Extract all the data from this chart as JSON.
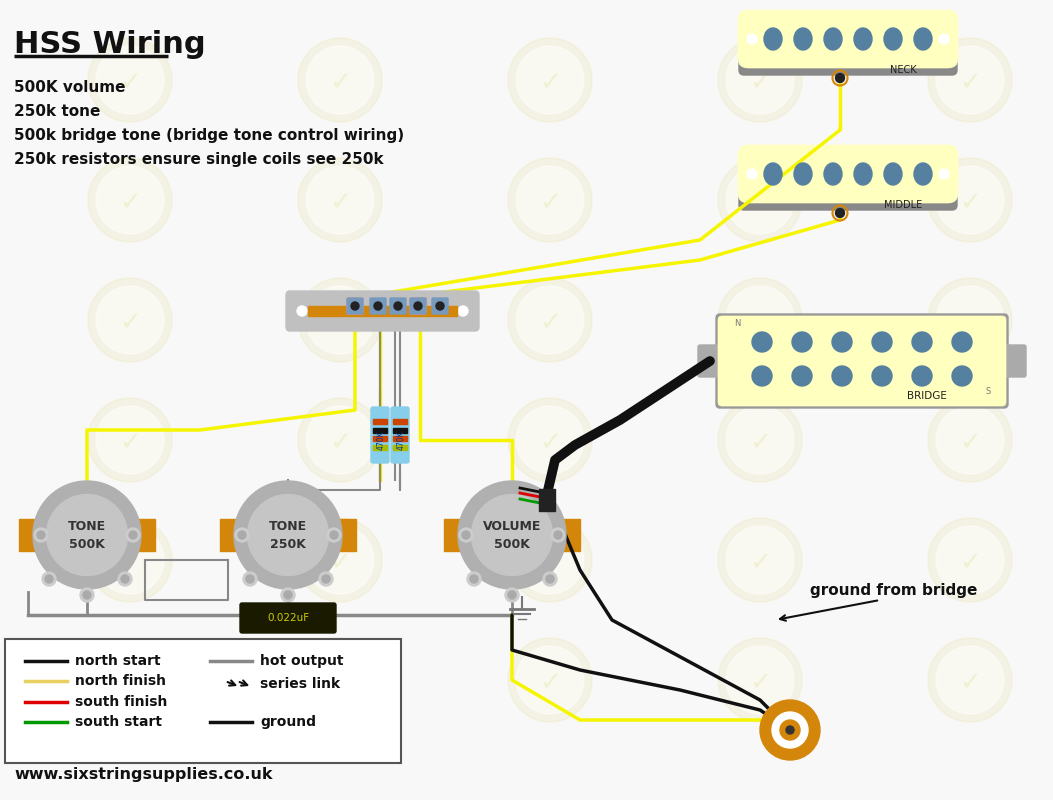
{
  "title": "HSS Wiring",
  "bg_color": "#f8f8f8",
  "info_lines": [
    "500K volume",
    "250k tone",
    "500k bridge tone (bridge tone control wiring)",
    "250k resistors ensure single coils see 250k"
  ],
  "website": "www.sixstringsupplies.co.uk",
  "cream": "#ffffc0",
  "pickup_gray": "#999999",
  "pot_gray": "#b0b0b0",
  "pot_inner": "#c8c8c8",
  "orange": "#d4860a",
  "yellow_wire": "#f5f500",
  "black_wire": "#111111",
  "gray_wire": "#888888",
  "red_wire": "#dd0000",
  "green_wire": "#009900",
  "resistor_blue": "#87ceeb",
  "watermark_color": "#d8d060"
}
